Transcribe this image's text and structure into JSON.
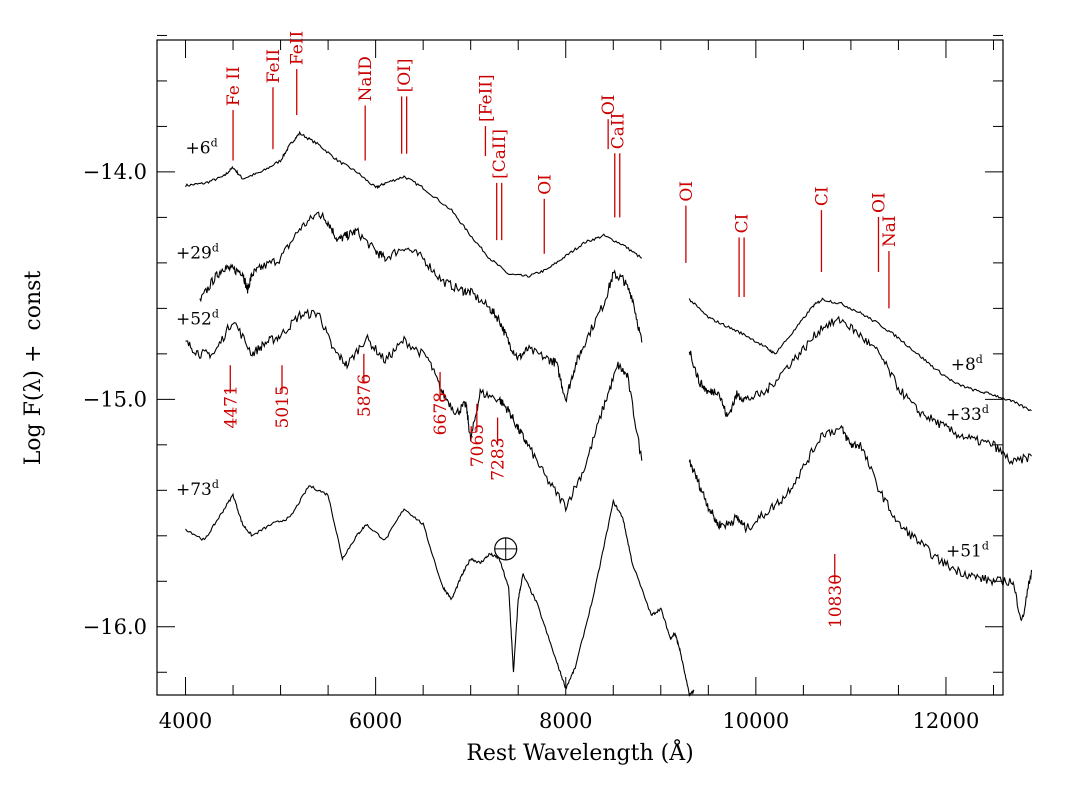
{
  "chart_data": {
    "type": "line",
    "title": "",
    "xlabel": "Rest Wavelength (Å)",
    "ylabel": "Log F(λ) +  const",
    "xlim": [
      3700,
      12600
    ],
    "ylim": [
      -16.3,
      -13.42
    ],
    "xticks": [
      4000,
      6000,
      8000,
      10000,
      12000
    ],
    "xtick_labels": [
      "4000",
      "6000",
      "8000",
      "10000",
      "12000"
    ],
    "x_minor_step": 500,
    "yticks": [
      -14.0,
      -15.0,
      -16.0
    ],
    "ytick_labels": [
      "−14.0",
      "−15.0",
      "−16.0"
    ],
    "y_minor_step": 0.2,
    "grid": false,
    "series": [
      {
        "name": "+6d",
        "label": "+6",
        "sup": "d",
        "band": "optical",
        "label_pos": [
          4000,
          -13.92
        ],
        "x": [
          4000,
          4200,
          4400,
          4500,
          4600,
          4800,
          5000,
          5100,
          5200,
          5400,
          5600,
          5800,
          6000,
          6100,
          6300,
          6500,
          6800,
          7000,
          7200,
          7400,
          7600,
          7800,
          8000,
          8200,
          8400,
          8600,
          8800
        ],
        "y": [
          -14.06,
          -14.05,
          -14.02,
          -13.98,
          -14.03,
          -14.0,
          -13.95,
          -13.88,
          -13.83,
          -13.88,
          -13.95,
          -14.0,
          -14.07,
          -14.05,
          -14.02,
          -14.07,
          -14.17,
          -14.28,
          -14.38,
          -14.45,
          -14.46,
          -14.43,
          -14.37,
          -14.31,
          -14.28,
          -14.32,
          -14.38
        ]
      },
      {
        "name": "+29d",
        "label": "+29",
        "sup": "d",
        "band": "optical",
        "label_pos": [
          3900,
          -14.38
        ],
        "x": [
          4150,
          4300,
          4400,
          4500,
          4600,
          4650,
          4700,
          4800,
          5000,
          5200,
          5400,
          5500,
          5600,
          5700,
          5800,
          6000,
          6100,
          6300,
          6500,
          6700,
          6900,
          7000,
          7200,
          7300,
          7400,
          7500,
          7600,
          7800,
          7900,
          8000,
          8100,
          8200,
          8400,
          8500,
          8600,
          8700,
          8800
        ],
        "y": [
          -14.57,
          -14.47,
          -14.42,
          -14.43,
          -14.44,
          -14.52,
          -14.45,
          -14.42,
          -14.38,
          -14.25,
          -14.18,
          -14.22,
          -14.3,
          -14.28,
          -14.26,
          -14.35,
          -14.38,
          -14.33,
          -14.38,
          -14.48,
          -14.52,
          -14.53,
          -14.6,
          -14.65,
          -14.75,
          -14.82,
          -14.78,
          -14.82,
          -14.84,
          -15.0,
          -14.85,
          -14.75,
          -14.58,
          -14.45,
          -14.47,
          -14.55,
          -14.75
        ]
      },
      {
        "name": "+52d",
        "label": "+52",
        "sup": "d",
        "band": "optical",
        "label_pos": [
          3900,
          -14.67
        ],
        "x": [
          4000,
          4150,
          4300,
          4500,
          4700,
          4850,
          5000,
          5200,
          5400,
          5550,
          5700,
          5900,
          6100,
          6300,
          6550,
          6700,
          6850,
          6950,
          7000,
          7100,
          7300,
          7400,
          7500,
          7600,
          7800,
          8000,
          8200,
          8400,
          8550,
          8650,
          8800
        ],
        "y": [
          -14.75,
          -14.8,
          -14.8,
          -14.65,
          -14.8,
          -14.75,
          -14.72,
          -14.63,
          -14.62,
          -14.78,
          -14.85,
          -14.73,
          -14.83,
          -14.74,
          -14.82,
          -14.97,
          -15.06,
          -15.02,
          -15.18,
          -14.97,
          -15.0,
          -15.05,
          -15.13,
          -15.2,
          -15.35,
          -15.47,
          -15.3,
          -15.03,
          -14.85,
          -14.9,
          -15.27
        ]
      },
      {
        "name": "+73d",
        "label": "+73",
        "sup": "d",
        "band": "optical",
        "label_pos": [
          3900,
          -15.42
        ],
        "x": [
          4000,
          4200,
          4350,
          4500,
          4600,
          4700,
          4900,
          5100,
          5300,
          5500,
          5650,
          5800,
          5900,
          6100,
          6300,
          6500,
          6700,
          6800,
          6900,
          7000,
          7100,
          7200,
          7300,
          7400,
          7450,
          7500,
          7550,
          7700,
          7900,
          8000,
          8100,
          8300,
          8500,
          8600,
          8700,
          8900,
          9000,
          9100,
          9150,
          9200,
          9300,
          9350
        ],
        "y": [
          -15.57,
          -15.62,
          -15.52,
          -15.42,
          -15.55,
          -15.6,
          -15.55,
          -15.52,
          -15.38,
          -15.42,
          -15.7,
          -15.6,
          -15.55,
          -15.62,
          -15.48,
          -15.55,
          -15.82,
          -15.88,
          -15.78,
          -15.7,
          -15.72,
          -15.68,
          -15.7,
          -15.83,
          -16.2,
          -15.88,
          -15.77,
          -15.9,
          -16.15,
          -16.27,
          -16.18,
          -15.85,
          -15.45,
          -15.52,
          -15.72,
          -15.95,
          -15.92,
          -16.05,
          -16.03,
          -16.1,
          -16.3,
          -16.28
        ]
      },
      {
        "name": "+8d",
        "label": "+8",
        "sup": "d",
        "band": "infrared",
        "label_pos": [
          12050,
          -14.87
        ],
        "x": [
          9300,
          9500,
          9700,
          9900,
          10100,
          10200,
          10400,
          10600,
          10700,
          10900,
          11100,
          11300,
          11500,
          11700,
          11900,
          12100,
          12300,
          12500,
          12700,
          12900
        ],
        "y": [
          -14.56,
          -14.64,
          -14.68,
          -14.72,
          -14.77,
          -14.8,
          -14.7,
          -14.59,
          -14.56,
          -14.58,
          -14.62,
          -14.67,
          -14.73,
          -14.8,
          -14.87,
          -14.93,
          -14.96,
          -14.98,
          -15.01,
          -15.05
        ]
      },
      {
        "name": "+33d",
        "label": "+33",
        "sup": "d",
        "band": "infrared",
        "label_pos": [
          12000,
          -15.09
        ],
        "x": [
          9300,
          9400,
          9500,
          9600,
          9700,
          9800,
          9900,
          10100,
          10300,
          10500,
          10700,
          10900,
          11100,
          11300,
          11500,
          11700,
          11900,
          12100,
          12300,
          12500,
          12700,
          12900
        ],
        "y": [
          -14.78,
          -14.92,
          -14.97,
          -14.96,
          -15.08,
          -14.98,
          -15.0,
          -14.97,
          -14.87,
          -14.78,
          -14.68,
          -14.65,
          -14.72,
          -14.8,
          -14.95,
          -15.05,
          -15.1,
          -15.15,
          -15.18,
          -15.2,
          -15.28,
          -15.25
        ]
      },
      {
        "name": "+51d",
        "label": "+51",
        "sup": "d",
        "band": "infrared",
        "label_pos": [
          12000,
          -15.69
        ],
        "x": [
          9300,
          9400,
          9500,
          9600,
          9700,
          9800,
          9900,
          10100,
          10300,
          10500,
          10700,
          10900,
          11000,
          11100,
          11300,
          11500,
          11700,
          11900,
          12100,
          12300,
          12500,
          12700,
          12800,
          12900
        ],
        "y": [
          -15.27,
          -15.37,
          -15.47,
          -15.55,
          -15.55,
          -15.52,
          -15.57,
          -15.5,
          -15.43,
          -15.3,
          -15.15,
          -15.13,
          -15.2,
          -15.2,
          -15.4,
          -15.55,
          -15.62,
          -15.7,
          -15.75,
          -15.78,
          -15.8,
          -15.8,
          -15.98,
          -15.75
        ]
      }
    ],
    "line_ids_top": [
      {
        "label": "Fe II",
        "wavelength": 4500,
        "tick_top": -13.86,
        "tick_bottom": -13.95,
        "double": false
      },
      {
        "label": "FeII",
        "wavelength": 4920,
        "tick_top": -13.76,
        "tick_bottom": -13.9,
        "double": false
      },
      {
        "label": "FeII",
        "wavelength": 5170,
        "tick_top": -13.68,
        "tick_bottom": -13.75,
        "double": false
      },
      {
        "label": "NaID",
        "wavelength": 5890,
        "tick_top": -13.84,
        "tick_bottom": -13.95,
        "double": false
      },
      {
        "label": "[OI]",
        "wavelength": 6300,
        "tick_top": -13.8,
        "tick_bottom": -13.92,
        "double": true
      },
      {
        "label": "[CaII]",
        "wavelength": 7300,
        "tick_top": -14.18,
        "tick_bottom": -14.3,
        "double": true
      },
      {
        "label": "[FeII]",
        "wavelength": 7155,
        "tick_top": -13.93,
        "tick_bottom": -13.93,
        "double": false
      },
      {
        "label": "OI",
        "wavelength": 7774,
        "tick_top": -14.25,
        "tick_bottom": -14.36,
        "double": false
      },
      {
        "label": "CaII",
        "wavelength": 8542,
        "tick_top": -14.05,
        "tick_bottom": -14.2,
        "double": true
      },
      {
        "label": "OI",
        "wavelength": 8446,
        "tick_top": -13.9,
        "tick_bottom": -13.9,
        "double": false
      },
      {
        "label": "OI",
        "wavelength": 9264,
        "tick_top": -14.28,
        "tick_bottom": -14.4,
        "double": false
      },
      {
        "label": "CI",
        "wavelength": 9850,
        "tick_top": -14.42,
        "tick_bottom": -14.55,
        "double": true
      },
      {
        "label": "CI",
        "wavelength": 10690,
        "tick_top": -14.3,
        "tick_bottom": -14.44,
        "double": false
      },
      {
        "label": "OI",
        "wavelength": 11290,
        "tick_top": -14.33,
        "tick_bottom": -14.44,
        "double": false
      },
      {
        "label": "NaI",
        "wavelength": 11400,
        "tick_top": -14.48,
        "tick_bottom": -14.6,
        "double": false
      }
    ],
    "line_ids_he": [
      {
        "label": "4471",
        "wavelength": 4471
      },
      {
        "label": "5015",
        "wavelength": 5015
      },
      {
        "label": "5876",
        "wavelength": 5876
      },
      {
        "label": "6678",
        "wavelength": 6678
      },
      {
        "label": "7065",
        "wavelength": 7065
      },
      {
        "label": "7283",
        "wavelength": 7283
      },
      {
        "label": "10830",
        "wavelength": 10830
      }
    ],
    "annotations": [
      {
        "text": "⊕",
        "meaning": "telluric",
        "wavelength": 7600,
        "flux": -15.64
      }
    ],
    "colors": {
      "spectra": "#000000",
      "line_ids": "#cc0000"
    }
  }
}
